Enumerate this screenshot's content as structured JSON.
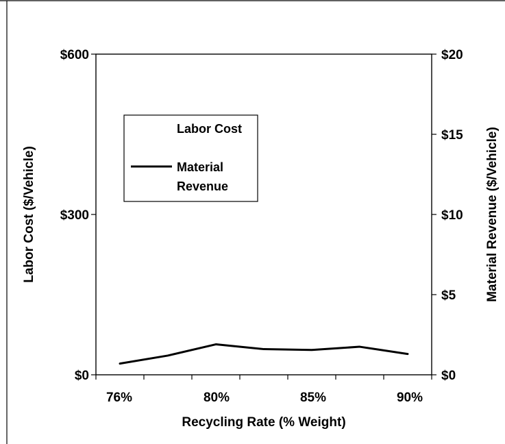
{
  "chart_data": {
    "type": "line",
    "title": "",
    "xlabel": "Recycling Rate (% Weight)",
    "ylabel_left": "Labor Cost ($/Vehicle)",
    "ylabel_right": "Material Revenue ($/Vehicle)",
    "x_tick_labels": [
      "76%",
      "80%",
      "85%",
      "90%"
    ],
    "y_left": {
      "lim": [
        0,
        600
      ],
      "ticks": [
        0,
        300,
        600
      ],
      "tick_labels": [
        "$0",
        "$300",
        "$600"
      ]
    },
    "y_right": {
      "lim": [
        0,
        20
      ],
      "ticks": [
        0,
        5,
        10,
        15,
        20
      ],
      "tick_labels": [
        "$0",
        "$5",
        "$10",
        "$15",
        "$20"
      ]
    },
    "grid": false,
    "legend": {
      "placement": "upper-left",
      "entries": [
        {
          "label": "Labor Cost",
          "line_visible": false
        },
        {
          "label_lines": [
            "Material",
            "Revenue"
          ],
          "line_visible": true
        }
      ]
    },
    "series": [
      {
        "name": "Material Revenue",
        "axis": "right",
        "color": "#000000",
        "x": [
          "76%",
          "78%",
          "80%",
          "82%",
          "85%",
          "87%",
          "90%"
        ],
        "values": [
          0.7,
          1.2,
          1.9,
          1.6,
          1.55,
          1.75,
          1.3
        ]
      }
    ]
  }
}
